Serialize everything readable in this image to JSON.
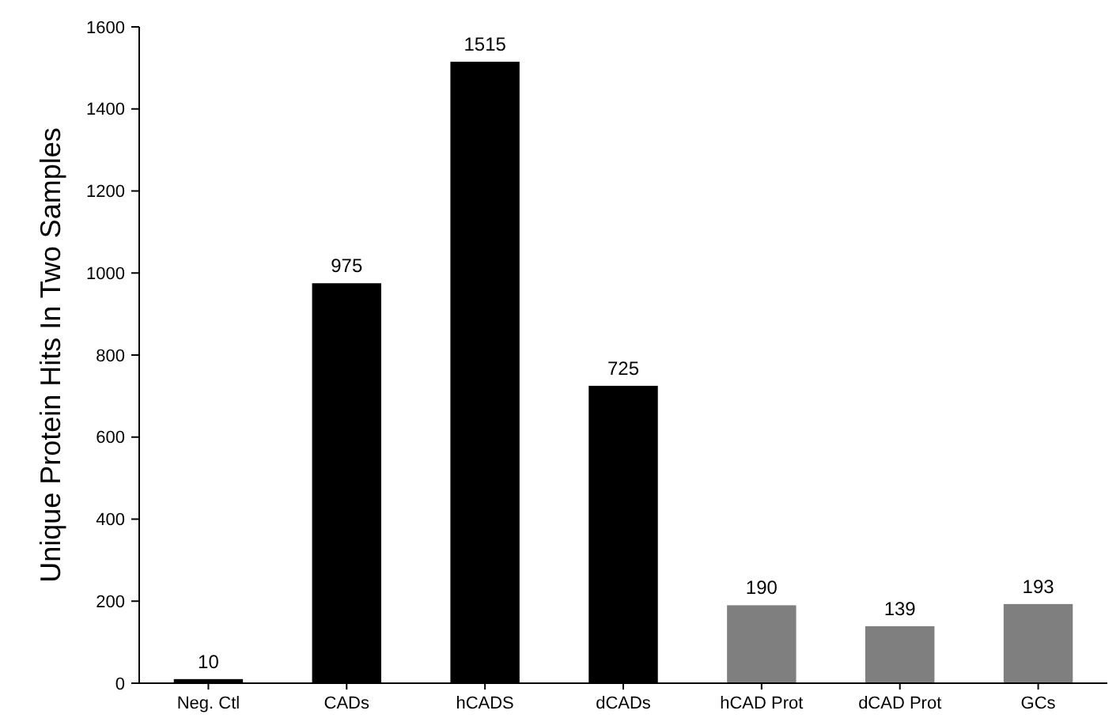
{
  "chart_data": {
    "type": "bar",
    "ylabel": "Unique Protein Hits In Two Samples",
    "categories": [
      "Neg. Ctl",
      "CADs",
      "hCADS",
      "dCADs",
      "hCAD Prot",
      "dCAD Prot",
      "GCs"
    ],
    "values": [
      10,
      975,
      1515,
      725,
      190,
      139,
      193
    ],
    "colors": [
      "#000000",
      "#000000",
      "#000000",
      "#000000",
      "#7f7f7f",
      "#7f7f7f",
      "#7f7f7f"
    ],
    "ylim": [
      0,
      1600
    ],
    "yticks": [
      0,
      200,
      400,
      600,
      800,
      1000,
      1200,
      1400,
      1600
    ],
    "data_labels": true
  }
}
